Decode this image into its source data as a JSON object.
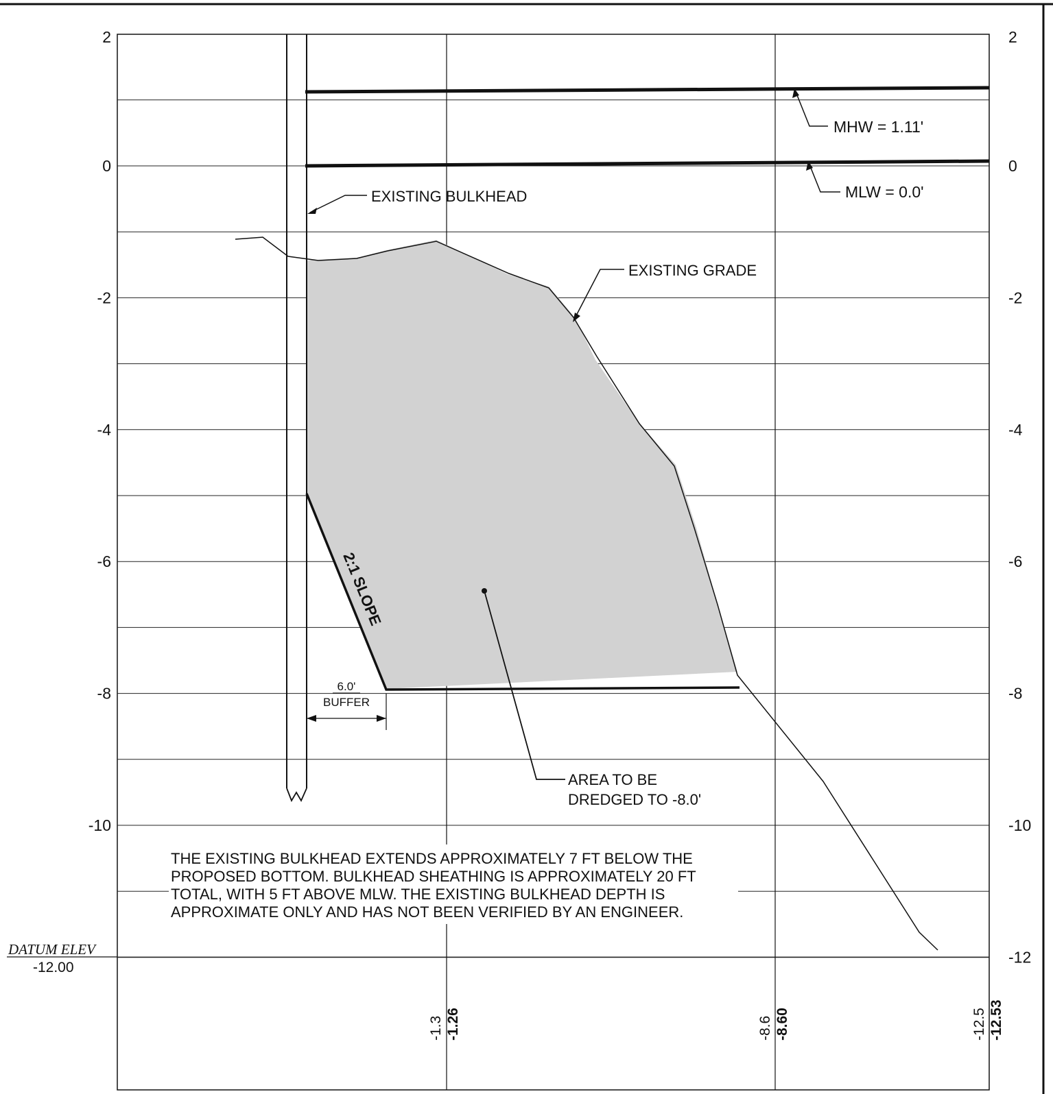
{
  "drawing": {
    "elevation_axis": {
      "left_labels": [
        "2",
        "0",
        "-2",
        "-4",
        "-6",
        "-8",
        "-10"
      ],
      "right_labels": [
        "2",
        "0",
        "-2",
        "-4",
        "-6",
        "-8",
        "-10",
        "-12"
      ],
      "left_values": [
        2,
        0,
        -2,
        -4,
        -6,
        -8,
        -10
      ],
      "right_values": [
        2,
        0,
        -2,
        -4,
        -6,
        -8,
        -10,
        -12
      ],
      "range": [
        -12,
        2
      ]
    },
    "water_levels": {
      "mhw_label": "MHW = 1.11'",
      "mhw_value": 1.11,
      "mlw_label": "MLW = 0.0'",
      "mlw_value": 0.0
    },
    "callouts": {
      "bulkhead": "EXISTING BULKHEAD",
      "grade": "EXISTING GRADE",
      "slope": "2:1 SLOPE",
      "buffer_value": "6.0'",
      "buffer_label": "BUFFER",
      "dredge_line1": "AREA TO BE",
      "dredge_line2": "DREDGED TO -8.0'"
    },
    "note_lines": [
      "THE EXISTING BULKHEAD EXTENDS APPROXIMATELY 7 FT BELOW THE",
      "PROPOSED BOTTOM. BULKHEAD SHEATHING IS APPROXIMATELY 20 FT",
      "TOTAL, WITH 5 FT ABOVE MLW. THE EXISTING BULKHEAD DEPTH IS",
      "APPROXIMATE ONLY AND HAS NOT BEEN VERIFIED BY AN ENGINEER."
    ],
    "datum": {
      "label": "DATUM ELEV",
      "value": "-12.00"
    },
    "stations": [
      {
        "upper": "-1.3",
        "lower": "-1.26"
      },
      {
        "upper": "-8.6",
        "lower": "-8.60"
      },
      {
        "upper": "-12.5",
        "lower": "-12.53"
      }
    ],
    "colors": {
      "ink": "#111111",
      "dredge_fill": "#d2d2d2",
      "grid": "#222222"
    }
  }
}
